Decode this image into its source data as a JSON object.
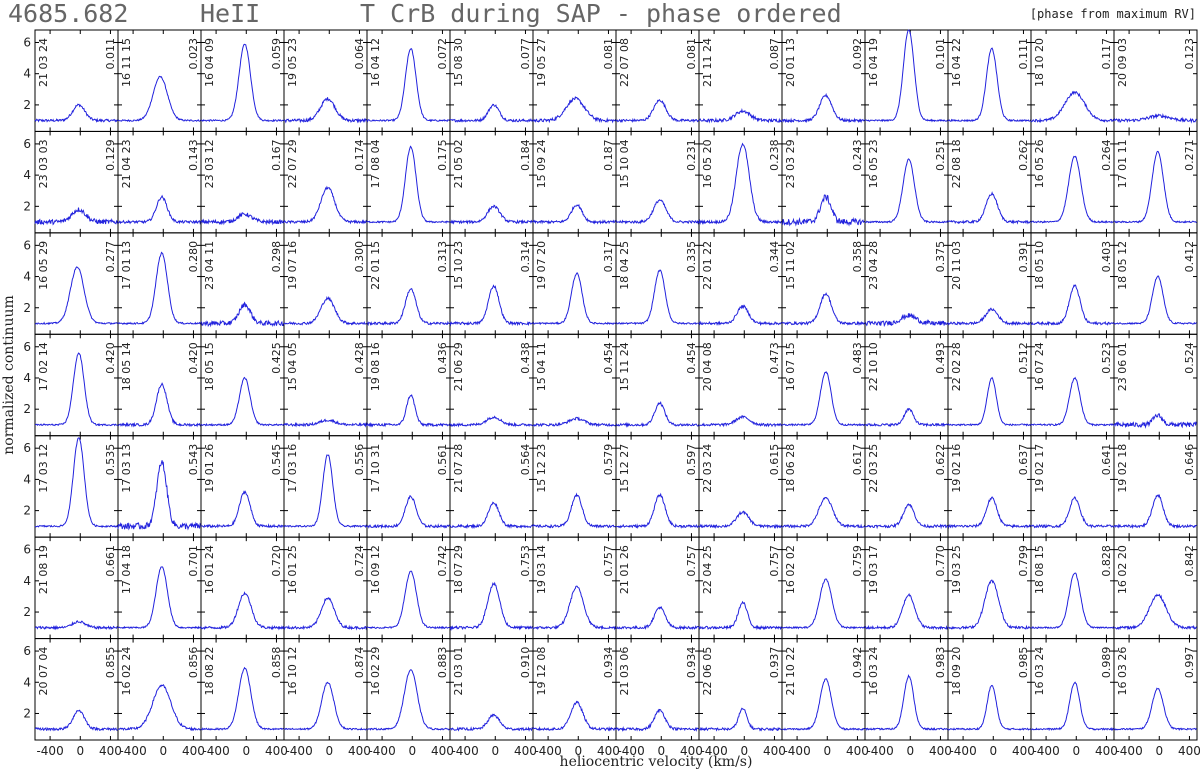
{
  "header": {
    "line_id": "4685.682",
    "ion": "HeII",
    "title": "T CrB during SAP - phase ordered",
    "note": "[phase from maximum RV]"
  },
  "chart_data": {
    "type": "line",
    "layout": "small-multiples grid, 14 columns x 7 rows",
    "xlabel": "heliocentric velocity (km/s)",
    "ylabel": "normalized continuum",
    "xlim": [
      -600,
      500
    ],
    "ylim": [
      0.3,
      6.8
    ],
    "xticks": [
      -400,
      0,
      400
    ],
    "yticks": [
      2,
      4,
      6
    ],
    "line_color": "#2222dd",
    "panels": [
      {
        "date": "21 03 24",
        "phase": "0.011",
        "peak": 2.0,
        "width": 80,
        "shift": -20,
        "noise": 0.08
      },
      {
        "date": "16 11 15",
        "phase": "0.023",
        "peak": 3.8,
        "width": 95,
        "shift": -40,
        "noise": 0.05
      },
      {
        "date": "16 04 09",
        "phase": "0.059",
        "peak": 5.9,
        "width": 75,
        "shift": -20,
        "noise": 0.05
      },
      {
        "date": "19 05 23",
        "phase": "0.064",
        "peak": 2.4,
        "width": 95,
        "shift": -20,
        "noise": 0.1
      },
      {
        "date": "16 04 12",
        "phase": "0.072",
        "peak": 5.6,
        "width": 70,
        "shift": -20,
        "noise": 0.05
      },
      {
        "date": "15 08 30",
        "phase": "0.077",
        "peak": 2.0,
        "width": 70,
        "shift": -20,
        "noise": 0.08
      },
      {
        "date": "19 05 27",
        "phase": "0.081",
        "peak": 2.4,
        "width": 120,
        "shift": -40,
        "noise": 0.1
      },
      {
        "date": "22 07 08",
        "phase": "0.081",
        "peak": 2.3,
        "width": 80,
        "shift": -20,
        "noise": 0.08
      },
      {
        "date": "21 11 24",
        "phase": "0.087",
        "peak": 1.6,
        "width": 100,
        "shift": -20,
        "noise": 0.1
      },
      {
        "date": "20 01 13",
        "phase": "0.092",
        "peak": 2.6,
        "width": 80,
        "shift": -20,
        "noise": 0.08
      },
      {
        "date": "16 04 19",
        "phase": "0.101",
        "peak": 6.8,
        "width": 70,
        "shift": -20,
        "noise": 0.05
      },
      {
        "date": "16 04 22",
        "phase": "0.111",
        "peak": 5.6,
        "width": 70,
        "shift": -20,
        "noise": 0.05
      },
      {
        "date": "18 10 20",
        "phase": "0.117",
        "peak": 2.8,
        "width": 130,
        "shift": -20,
        "noise": 0.08
      },
      {
        "date": "20 09 03",
        "phase": "0.123",
        "peak": 1.3,
        "width": 140,
        "shift": 0,
        "noise": 0.1
      },
      {
        "date": "23 03 03",
        "phase": "0.129",
        "peak": 1.8,
        "width": 90,
        "shift": -20,
        "noise": 0.15
      },
      {
        "date": "21 04 23",
        "phase": "0.143",
        "peak": 2.6,
        "width": 70,
        "shift": -20,
        "noise": 0.08
      },
      {
        "date": "23 03 12",
        "phase": "0.167",
        "peak": 1.5,
        "width": 90,
        "shift": -20,
        "noise": 0.12
      },
      {
        "date": "22 07 29",
        "phase": "0.174",
        "peak": 3.2,
        "width": 90,
        "shift": -20,
        "noise": 0.08
      },
      {
        "date": "17 08 04",
        "phase": "0.175",
        "peak": 5.8,
        "width": 70,
        "shift": -20,
        "noise": 0.05
      },
      {
        "date": "21 05 02",
        "phase": "0.184",
        "peak": 2.0,
        "width": 80,
        "shift": -20,
        "noise": 0.08
      },
      {
        "date": "15 09 24",
        "phase": "0.187",
        "peak": 2.1,
        "width": 70,
        "shift": -20,
        "noise": 0.08
      },
      {
        "date": "15 10 04",
        "phase": "0.231",
        "peak": 2.4,
        "width": 80,
        "shift": -20,
        "noise": 0.08
      },
      {
        "date": "16 05 20",
        "phase": "0.238",
        "peak": 6.0,
        "width": 85,
        "shift": -20,
        "noise": 0.08
      },
      {
        "date": "23 03 29",
        "phase": "0.243",
        "peak": 2.6,
        "width": 70,
        "shift": -20,
        "noise": 0.2
      },
      {
        "date": "16 05 23",
        "phase": "0.251",
        "peak": 5.0,
        "width": 75,
        "shift": -20,
        "noise": 0.05
      },
      {
        "date": "22 08 18",
        "phase": "0.262",
        "peak": 2.8,
        "width": 75,
        "shift": -20,
        "noise": 0.08
      },
      {
        "date": "16 05 26",
        "phase": "0.264",
        "peak": 5.2,
        "width": 80,
        "shift": -20,
        "noise": 0.05
      },
      {
        "date": "17 01 11",
        "phase": "0.271",
        "peak": 5.5,
        "width": 75,
        "shift": -20,
        "noise": 0.05
      },
      {
        "date": "16 05 29",
        "phase": "0.277",
        "peak": 4.6,
        "width": 90,
        "shift": -40,
        "noise": 0.05
      },
      {
        "date": "17 01 13",
        "phase": "0.280",
        "peak": 5.5,
        "width": 75,
        "shift": -20,
        "noise": 0.05
      },
      {
        "date": "23 04 11",
        "phase": "0.298",
        "peak": 2.2,
        "width": 75,
        "shift": -20,
        "noise": 0.15
      },
      {
        "date": "19 07 16",
        "phase": "0.300",
        "peak": 2.6,
        "width": 90,
        "shift": -20,
        "noise": 0.08
      },
      {
        "date": "22 01 15",
        "phase": "0.313",
        "peak": 3.2,
        "width": 70,
        "shift": -20,
        "noise": 0.08
      },
      {
        "date": "15 10 23",
        "phase": "0.314",
        "peak": 3.4,
        "width": 70,
        "shift": -20,
        "noise": 0.08
      },
      {
        "date": "19 07 20",
        "phase": "0.317",
        "peak": 4.2,
        "width": 70,
        "shift": -20,
        "noise": 0.05
      },
      {
        "date": "18 04 25",
        "phase": "0.335",
        "peak": 4.4,
        "width": 70,
        "shift": -20,
        "noise": 0.05
      },
      {
        "date": "22 01 22",
        "phase": "0.344",
        "peak": 2.1,
        "width": 75,
        "shift": -20,
        "noise": 0.08
      },
      {
        "date": "15 11 02",
        "phase": "0.358",
        "peak": 2.9,
        "width": 75,
        "shift": -20,
        "noise": 0.08
      },
      {
        "date": "23 04 28",
        "phase": "0.375",
        "peak": 1.5,
        "width": 100,
        "shift": -20,
        "noise": 0.15
      },
      {
        "date": "20 11 03",
        "phase": "0.391",
        "peak": 1.9,
        "width": 80,
        "shift": -20,
        "noise": 0.08
      },
      {
        "date": "18 05 10",
        "phase": "0.403",
        "peak": 3.4,
        "width": 70,
        "shift": -20,
        "noise": 0.08
      },
      {
        "date": "18 05 12",
        "phase": "0.412",
        "peak": 4.0,
        "width": 70,
        "shift": -20,
        "noise": 0.05
      },
      {
        "date": "17 02 14",
        "phase": "0.420",
        "peak": 5.6,
        "width": 70,
        "shift": -20,
        "noise": 0.05
      },
      {
        "date": "18 05 14",
        "phase": "0.420",
        "peak": 3.6,
        "width": 70,
        "shift": -20,
        "noise": 0.08
      },
      {
        "date": "18 05 15",
        "phase": "0.425",
        "peak": 4.0,
        "width": 70,
        "shift": -20,
        "noise": 0.05
      },
      {
        "date": "15 04 05",
        "phase": "0.428",
        "peak": 1.3,
        "width": 100,
        "shift": -20,
        "noise": 0.08
      },
      {
        "date": "19 08 16",
        "phase": "0.436",
        "peak": 2.9,
        "width": 55,
        "shift": -20,
        "noise": 0.08
      },
      {
        "date": "21 06 29",
        "phase": "0.438",
        "peak": 1.5,
        "width": 90,
        "shift": -20,
        "noise": 0.08
      },
      {
        "date": "15 04 11",
        "phase": "0.454",
        "peak": 1.4,
        "width": 100,
        "shift": -20,
        "noise": 0.08
      },
      {
        "date": "15 11 24",
        "phase": "0.454",
        "peak": 2.4,
        "width": 65,
        "shift": -20,
        "noise": 0.08
      },
      {
        "date": "20 04 08",
        "phase": "0.473",
        "peak": 1.5,
        "width": 90,
        "shift": -20,
        "noise": 0.08
      },
      {
        "date": "16 07 15",
        "phase": "0.483",
        "peak": 4.4,
        "width": 70,
        "shift": -20,
        "noise": 0.05
      },
      {
        "date": "22 10 10",
        "phase": "0.493",
        "peak": 2.0,
        "width": 60,
        "shift": -20,
        "noise": 0.08
      },
      {
        "date": "22 02 28",
        "phase": "0.512",
        "peak": 4.0,
        "width": 60,
        "shift": -20,
        "noise": 0.05
      },
      {
        "date": "16 07 24",
        "phase": "0.523",
        "peak": 4.0,
        "width": 70,
        "shift": -20,
        "noise": 0.05
      },
      {
        "date": "23 06 01",
        "phase": "0.524",
        "peak": 1.6,
        "width": 60,
        "shift": -20,
        "noise": 0.15
      },
      {
        "date": "17 03 12",
        "phase": "0.535",
        "peak": 6.7,
        "width": 70,
        "shift": -20,
        "noise": 0.05
      },
      {
        "date": "17 03 13",
        "phase": "0.543",
        "peak": 5.1,
        "width": 65,
        "shift": -20,
        "noise": 0.2
      },
      {
        "date": "19 01 26",
        "phase": "0.545",
        "peak": 3.2,
        "width": 70,
        "shift": -20,
        "noise": 0.08
      },
      {
        "date": "17 03 16",
        "phase": "0.556",
        "peak": 5.6,
        "width": 65,
        "shift": -20,
        "noise": 0.05
      },
      {
        "date": "17 10 31",
        "phase": "0.561",
        "peak": 2.9,
        "width": 70,
        "shift": -20,
        "noise": 0.08
      },
      {
        "date": "21 07 28",
        "phase": "0.564",
        "peak": 2.5,
        "width": 70,
        "shift": -20,
        "noise": 0.08
      },
      {
        "date": "15 12 23",
        "phase": "0.579",
        "peak": 3.0,
        "width": 70,
        "shift": -20,
        "noise": 0.08
      },
      {
        "date": "15 12 27",
        "phase": "0.597",
        "peak": 3.0,
        "width": 70,
        "shift": -20,
        "noise": 0.08
      },
      {
        "date": "22 03 24",
        "phase": "0.615",
        "peak": 1.9,
        "width": 80,
        "shift": -20,
        "noise": 0.08
      },
      {
        "date": "18 06 28",
        "phase": "0.617",
        "peak": 2.8,
        "width": 90,
        "shift": -20,
        "noise": 0.08
      },
      {
        "date": "22 03 25",
        "phase": "0.622",
        "peak": 2.4,
        "width": 70,
        "shift": -20,
        "noise": 0.08
      },
      {
        "date": "19 02 16",
        "phase": "0.637",
        "peak": 2.8,
        "width": 70,
        "shift": -20,
        "noise": 0.08
      },
      {
        "date": "19 02 17",
        "phase": "0.641",
        "peak": 2.8,
        "width": 70,
        "shift": -20,
        "noise": 0.08
      },
      {
        "date": "19 02 18",
        "phase": "0.646",
        "peak": 3.0,
        "width": 70,
        "shift": -20,
        "noise": 0.08
      },
      {
        "date": "21 08 19",
        "phase": "0.661",
        "peak": 1.4,
        "width": 80,
        "shift": -20,
        "noise": 0.08
      },
      {
        "date": "17 04 18",
        "phase": "0.701",
        "peak": 4.9,
        "width": 75,
        "shift": -20,
        "noise": 0.05
      },
      {
        "date": "16 01 24",
        "phase": "0.720",
        "peak": 3.2,
        "width": 85,
        "shift": -20,
        "noise": 0.08
      },
      {
        "date": "16 01 25",
        "phase": "0.724",
        "peak": 2.9,
        "width": 85,
        "shift": -20,
        "noise": 0.08
      },
      {
        "date": "16 09 12",
        "phase": "0.742",
        "peak": 4.6,
        "width": 75,
        "shift": -20,
        "noise": 0.05
      },
      {
        "date": "18 07 29",
        "phase": "0.753",
        "peak": 3.8,
        "width": 80,
        "shift": -20,
        "noise": 0.08
      },
      {
        "date": "19 03 14",
        "phase": "0.757",
        "peak": 3.6,
        "width": 90,
        "shift": -20,
        "noise": 0.08
      },
      {
        "date": "21 01 26",
        "phase": "0.757",
        "peak": 2.3,
        "width": 70,
        "shift": -20,
        "noise": 0.08
      },
      {
        "date": "22 04 25",
        "phase": "0.757",
        "peak": 2.6,
        "width": 60,
        "shift": -20,
        "noise": 0.08
      },
      {
        "date": "16 02 02",
        "phase": "0.759",
        "peak": 4.1,
        "width": 80,
        "shift": -20,
        "noise": 0.05
      },
      {
        "date": "19 03 17",
        "phase": "0.770",
        "peak": 3.1,
        "width": 80,
        "shift": -20,
        "noise": 0.08
      },
      {
        "date": "19 03 25",
        "phase": "0.799",
        "peak": 4.0,
        "width": 90,
        "shift": -20,
        "noise": 0.08
      },
      {
        "date": "18 08 15",
        "phase": "0.828",
        "peak": 4.5,
        "width": 75,
        "shift": -20,
        "noise": 0.05
      },
      {
        "date": "16 02 20",
        "phase": "0.842",
        "peak": 3.1,
        "width": 110,
        "shift": -20,
        "noise": 0.08
      },
      {
        "date": "20 07 04",
        "phase": "0.855",
        "peak": 2.2,
        "width": 75,
        "shift": -20,
        "noise": 0.08
      },
      {
        "date": "16 02 24",
        "phase": "0.856",
        "peak": 3.8,
        "width": 120,
        "shift": -20,
        "noise": 0.08
      },
      {
        "date": "18 08 22",
        "phase": "0.858",
        "peak": 4.9,
        "width": 80,
        "shift": -20,
        "noise": 0.05
      },
      {
        "date": "16 10 12",
        "phase": "0.874",
        "peak": 4.0,
        "width": 80,
        "shift": -20,
        "noise": 0.05
      },
      {
        "date": "16 02 29",
        "phase": "0.883",
        "peak": 4.8,
        "width": 85,
        "shift": -20,
        "noise": 0.05
      },
      {
        "date": "21 03 01",
        "phase": "0.910",
        "peak": 1.9,
        "width": 75,
        "shift": -20,
        "noise": 0.08
      },
      {
        "date": "19 12 08",
        "phase": "0.934",
        "peak": 2.7,
        "width": 80,
        "shift": -20,
        "noise": 0.08
      },
      {
        "date": "21 03 06",
        "phase": "0.934",
        "peak": 2.2,
        "width": 70,
        "shift": -20,
        "noise": 0.08
      },
      {
        "date": "22 06 05",
        "phase": "0.937",
        "peak": 2.3,
        "width": 55,
        "shift": -20,
        "noise": 0.08
      },
      {
        "date": "21 10 22",
        "phase": "0.942",
        "peak": 4.2,
        "width": 75,
        "shift": -20,
        "noise": 0.05
      },
      {
        "date": "16 03 24",
        "phase": "0.983",
        "peak": 4.4,
        "width": 65,
        "shift": -20,
        "noise": 0.05
      },
      {
        "date": "18 09 20",
        "phase": "0.985",
        "peak": 3.8,
        "width": 60,
        "shift": -20,
        "noise": 0.05
      },
      {
        "date": "16 03 24",
        "phase": "0.989",
        "peak": 4.0,
        "width": 65,
        "shift": -20,
        "noise": 0.05
      },
      {
        "date": "16 03 26",
        "phase": "0.997",
        "peak": 3.6,
        "width": 75,
        "shift": -20,
        "noise": 0.05
      }
    ]
  }
}
